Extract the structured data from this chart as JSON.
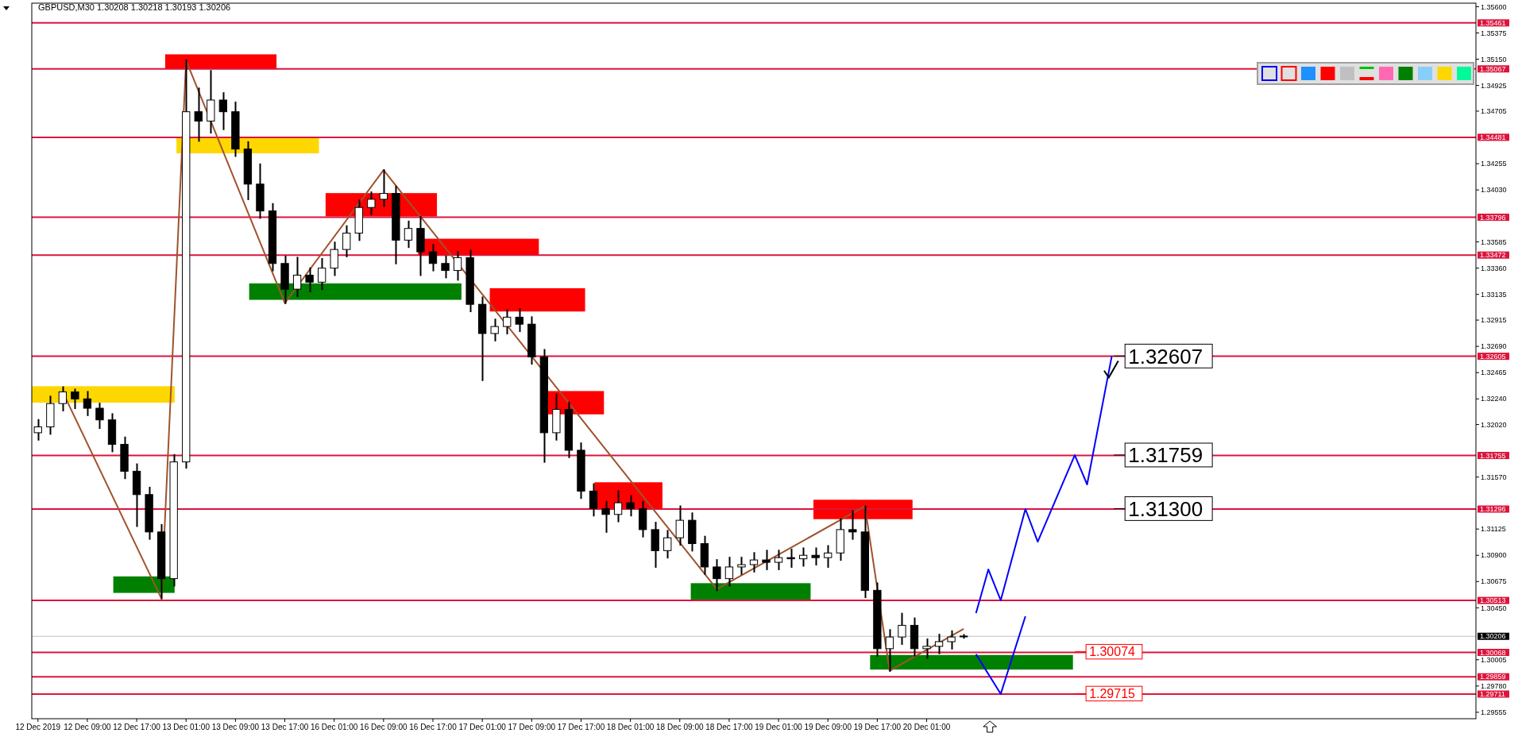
{
  "chart_data": {
    "type": "candlestick",
    "title": "GBPUSD,M30  1.30208 1.30218 1.30193 1.30206",
    "categories": [
      "12 Dec 2019",
      null,
      null,
      null,
      "12 Dec 09:00",
      null,
      null,
      null,
      "12 Dec 17:00",
      null,
      null,
      null,
      "13 Dec 01:00",
      null,
      null,
      null,
      "13 Dec 09:00",
      null,
      null,
      null,
      "13 Dec 17:00",
      null,
      null,
      null,
      "16 Dec 01:00",
      null,
      null,
      null,
      "16 Dec 09:00",
      null,
      null,
      null,
      "16 Dec 17:00",
      null,
      null,
      null,
      "17 Dec 01:00",
      null,
      null,
      null,
      "17 Dec 09:00",
      null,
      null,
      null,
      "17 Dec 17:00",
      null,
      null,
      null,
      "18 Dec 01:00",
      null,
      null,
      null,
      "18 Dec 09:00",
      null,
      null,
      null,
      "18 Dec 17:00",
      null,
      null,
      null,
      "19 Dec 01:00",
      null,
      null,
      null,
      "19 Dec 09:00",
      null,
      null,
      null,
      "19 Dec 17:00",
      null,
      null,
      null,
      "20 Dec 01:00",
      null,
      null,
      null,
      null,
      null,
      null,
      null,
      null,
      null,
      null,
      null,
      null,
      null,
      null,
      null,
      null,
      null,
      null,
      null,
      null,
      null,
      null,
      null,
      null,
      null,
      null,
      null,
      null,
      null,
      null,
      null,
      null,
      null,
      null,
      null,
      null,
      null,
      null,
      null,
      null,
      null,
      null,
      null,
      null
    ],
    "ohlc": [
      [
        1.3195,
        1.3206,
        1.3189,
        1.32
      ],
      [
        1.32,
        1.3226,
        1.3194,
        1.322
      ],
      [
        1.322,
        1.3234,
        1.3214,
        1.323
      ],
      [
        1.323,
        1.3232,
        1.3216,
        1.3224
      ],
      [
        1.3224,
        1.323,
        1.321,
        1.3216
      ],
      [
        1.3216,
        1.322,
        1.3199,
        1.3206
      ],
      [
        1.3206,
        1.3211,
        1.3179,
        1.3185
      ],
      [
        1.3185,
        1.3191,
        1.3156,
        1.3162
      ],
      [
        1.3162,
        1.3168,
        1.3115,
        1.3142
      ],
      [
        1.3142,
        1.3148,
        1.3104,
        1.311
      ],
      [
        1.311,
        1.3116,
        1.3053,
        1.307
      ],
      [
        1.307,
        1.3176,
        1.3064,
        1.317
      ],
      [
        1.317,
        1.3514,
        1.3165,
        1.347
      ],
      [
        1.347,
        1.349,
        1.3445,
        1.3462
      ],
      [
        1.3462,
        1.3505,
        1.3452,
        1.348
      ],
      [
        1.348,
        1.3486,
        1.3455,
        1.347
      ],
      [
        1.347,
        1.3478,
        1.3432,
        1.3438
      ],
      [
        1.3438,
        1.3444,
        1.3395,
        1.3408
      ],
      [
        1.3408,
        1.3425,
        1.3379,
        1.3385
      ],
      [
        1.3385,
        1.3391,
        1.3334,
        1.334
      ],
      [
        1.334,
        1.3346,
        1.3306,
        1.3318
      ],
      [
        1.3318,
        1.3345,
        1.3312,
        1.333
      ],
      [
        1.333,
        1.3336,
        1.3316,
        1.3324
      ],
      [
        1.3324,
        1.3344,
        1.3318,
        1.3336
      ],
      [
        1.3336,
        1.3358,
        1.333,
        1.3352
      ],
      [
        1.3352,
        1.3372,
        1.3346,
        1.3366
      ],
      [
        1.3366,
        1.3394,
        1.336,
        1.3388
      ],
      [
        1.3388,
        1.3401,
        1.3382,
        1.3395
      ],
      [
        1.3395,
        1.342,
        1.3389,
        1.34
      ],
      [
        1.34,
        1.3406,
        1.334,
        1.336
      ],
      [
        1.336,
        1.3376,
        1.3354,
        1.337
      ],
      [
        1.337,
        1.338,
        1.333,
        1.335
      ],
      [
        1.335,
        1.3356,
        1.3334,
        1.334
      ],
      [
        1.334,
        1.3346,
        1.3328,
        1.3334
      ],
      [
        1.3334,
        1.335,
        1.3326,
        1.3345
      ],
      [
        1.3345,
        1.3351,
        1.3299,
        1.3305
      ],
      [
        1.3305,
        1.3311,
        1.324,
        1.328
      ],
      [
        1.328,
        1.3292,
        1.3274,
        1.3286
      ],
      [
        1.3286,
        1.33,
        1.328,
        1.3294
      ],
      [
        1.3294,
        1.3301,
        1.3282,
        1.3288
      ],
      [
        1.3288,
        1.3294,
        1.3254,
        1.326
      ],
      [
        1.326,
        1.3266,
        1.317,
        1.3195
      ],
      [
        1.3195,
        1.3228,
        1.3189,
        1.3215
      ],
      [
        1.3215,
        1.3221,
        1.3174,
        1.318
      ],
      [
        1.318,
        1.3186,
        1.3139,
        1.3145
      ],
      [
        1.3145,
        1.3151,
        1.3124,
        1.313
      ],
      [
        1.313,
        1.3136,
        1.311,
        1.3125
      ],
      [
        1.3125,
        1.3145,
        1.3119,
        1.3135
      ],
      [
        1.3135,
        1.3141,
        1.3124,
        1.313
      ],
      [
        1.313,
        1.3136,
        1.3106,
        1.3112
      ],
      [
        1.3112,
        1.3118,
        1.308,
        1.3094
      ],
      [
        1.3094,
        1.3111,
        1.3088,
        1.3105
      ],
      [
        1.3105,
        1.3132,
        1.3099,
        1.312
      ],
      [
        1.312,
        1.3126,
        1.3094,
        1.31
      ],
      [
        1.31,
        1.3106,
        1.3074,
        1.308
      ],
      [
        1.308,
        1.3086,
        1.306,
        1.307
      ],
      [
        1.307,
        1.3088,
        1.3064,
        1.308
      ],
      [
        1.308,
        1.3088,
        1.3074,
        1.3082
      ],
      [
        1.3082,
        1.3092,
        1.3076,
        1.3086
      ],
      [
        1.3086,
        1.3094,
        1.3078,
        1.3084
      ],
      [
        1.3084,
        1.3094,
        1.3078,
        1.3088
      ],
      [
        1.3088,
        1.3095,
        1.308,
        1.3087
      ],
      [
        1.3087,
        1.3096,
        1.3081,
        1.309
      ],
      [
        1.309,
        1.3096,
        1.3082,
        1.3088
      ],
      [
        1.3088,
        1.3098,
        1.308,
        1.3092
      ],
      [
        1.3092,
        1.3121,
        1.3086,
        1.3112
      ],
      [
        1.3112,
        1.3128,
        1.3104,
        1.311
      ],
      [
        1.311,
        1.3132,
        1.3054,
        1.306
      ],
      [
        1.306,
        1.3066,
        1.3004,
        1.301
      ],
      [
        1.301,
        1.3026,
        1.2991,
        1.302
      ],
      [
        1.302,
        1.304,
        1.3014,
        1.303
      ],
      [
        1.303,
        1.3036,
        1.3004,
        1.301
      ],
      [
        1.301,
        1.3018,
        1.3002,
        1.3012
      ],
      [
        1.3012,
        1.3022,
        1.3006,
        1.3016
      ],
      [
        1.3016,
        1.3025,
        1.301,
        1.302
      ],
      [
        1.30208,
        1.30218,
        1.30193,
        1.30206
      ],
      null,
      null,
      null,
      null,
      null,
      null,
      null,
      null,
      null,
      null,
      null,
      null,
      null,
      null,
      null,
      null,
      null,
      null,
      null,
      null,
      null,
      null,
      null,
      null,
      null,
      null,
      null,
      null,
      null,
      null,
      null,
      null,
      null,
      null,
      null,
      null,
      null,
      null,
      null,
      null,
      null
    ],
    "series": [
      {
        "type": "line",
        "color": "#a0522d",
        "values": [
          null,
          null,
          1.323,
          null,
          null,
          null,
          null,
          null,
          null,
          null,
          1.3053,
          null,
          1.3514,
          null,
          null,
          null,
          null,
          null,
          null,
          null,
          1.3306,
          null,
          null,
          null,
          null,
          null,
          null,
          null,
          1.342,
          null,
          null,
          null,
          null,
          null,
          null,
          null,
          null,
          null,
          null,
          null,
          null,
          null,
          null,
          null,
          null,
          null,
          null,
          null,
          null,
          null,
          null,
          null,
          null,
          null,
          null,
          1.3061,
          null,
          null,
          null,
          null,
          null,
          null,
          null,
          null,
          null,
          null,
          null,
          1.3132,
          null,
          1.2991,
          null,
          null,
          null,
          null,
          null,
          1.3027,
          null,
          null,
          null,
          null,
          null,
          null,
          null,
          null,
          null,
          null,
          null,
          null,
          null,
          null,
          null,
          null,
          null,
          null,
          null,
          null,
          null,
          null,
          null,
          null,
          null,
          null,
          null,
          null,
          null,
          null,
          null,
          null,
          null,
          null,
          null,
          null,
          null,
          null,
          null,
          null,
          null
        ]
      },
      {
        "type": "line",
        "color": "#0000ff",
        "values": [
          null,
          null,
          null,
          null,
          null,
          null,
          null,
          null,
          null,
          null,
          null,
          null,
          null,
          null,
          null,
          null,
          null,
          null,
          null,
          null,
          null,
          null,
          null,
          null,
          null,
          null,
          null,
          null,
          null,
          null,
          null,
          null,
          null,
          null,
          null,
          null,
          null,
          null,
          null,
          null,
          null,
          null,
          null,
          null,
          null,
          null,
          null,
          null,
          null,
          null,
          null,
          null,
          null,
          null,
          null,
          null,
          null,
          null,
          null,
          null,
          null,
          null,
          null,
          null,
          null,
          null,
          null,
          null,
          null,
          null,
          null,
          null,
          null,
          null,
          null,
          null,
          1.30405,
          1.30779,
          1.30514,
          null,
          1.31296,
          1.31017,
          null,
          null,
          1.31758,
          1.31507,
          null,
          1.32607,
          null,
          null,
          null,
          null,
          null,
          null,
          null,
          null,
          null,
          null,
          null,
          null,
          null,
          null,
          null,
          null,
          null,
          null,
          null,
          null,
          null,
          null,
          null,
          null,
          null,
          null,
          null,
          null,
          null
        ]
      },
      {
        "type": "line",
        "color": "#0000ff",
        "values": [
          null,
          null,
          null,
          null,
          null,
          null,
          null,
          null,
          null,
          null,
          null,
          null,
          null,
          null,
          null,
          null,
          null,
          null,
          null,
          null,
          null,
          null,
          null,
          null,
          null,
          null,
          null,
          null,
          null,
          null,
          null,
          null,
          null,
          null,
          null,
          null,
          null,
          null,
          null,
          null,
          null,
          null,
          null,
          null,
          null,
          null,
          null,
          null,
          null,
          null,
          null,
          null,
          null,
          null,
          null,
          null,
          null,
          null,
          null,
          null,
          null,
          null,
          null,
          null,
          null,
          null,
          null,
          null,
          null,
          null,
          null,
          null,
          null,
          null,
          null,
          null,
          1.30052,
          null,
          1.29712,
          null,
          1.30378,
          null,
          null,
          null,
          null,
          null,
          null,
          null,
          null,
          null,
          null,
          null,
          null,
          null,
          null,
          null,
          null,
          null,
          null,
          null,
          null,
          null,
          null,
          null,
          null,
          null,
          null,
          null,
          null,
          null,
          null,
          null,
          null,
          null,
          null,
          null,
          null
        ]
      }
    ],
    "ylim": [
      1.295,
      1.3563
    ],
    "yticks": [
      {
        "value": 1.356,
        "label": "1.35600"
      },
      {
        "value": 1.35375,
        "label": "1.35375"
      },
      {
        "value": 1.3515,
        "label": "1.35150"
      },
      {
        "value": 1.34925,
        "label": "1.34925"
      },
      {
        "value": 1.34705,
        "label": "1.34705"
      },
      {
        "value": 1.34255,
        "label": "1.34255"
      },
      {
        "value": 1.3403,
        "label": "1.34030"
      },
      {
        "value": 1.33585,
        "label": "1.33585"
      },
      {
        "value": 1.3336,
        "label": "1.33360"
      },
      {
        "value": 1.33135,
        "label": "1.33135"
      },
      {
        "value": 1.32915,
        "label": "1.32915"
      },
      {
        "value": 1.3269,
        "label": "1.32690"
      },
      {
        "value": 1.32465,
        "label": "1.32465"
      },
      {
        "value": 1.3224,
        "label": "1.32240"
      },
      {
        "value": 1.3202,
        "label": "1.32020"
      },
      {
        "value": 1.3157,
        "label": "1.31570"
      },
      {
        "value": 1.31125,
        "label": "1.31125"
      },
      {
        "value": 1.309,
        "label": "1.30900"
      },
      {
        "value": 1.30675,
        "label": "1.30675"
      },
      {
        "value": 1.3045,
        "label": "1.30450"
      },
      {
        "value": 1.30005,
        "label": "1.30005"
      },
      {
        "value": 1.2978,
        "label": "1.29780"
      },
      {
        "value": 1.29555,
        "label": "1.29555"
      }
    ],
    "ref_lines": [
      {
        "axis": "y",
        "value": 1.35461,
        "label": "1.35461",
        "color": "#dc143c"
      },
      {
        "axis": "y",
        "value": 1.35067,
        "label": "1.35067",
        "color": "#dc143c"
      },
      {
        "axis": "y",
        "value": 1.34481,
        "label": "1.34481",
        "color": "#dc143c"
      },
      {
        "axis": "y",
        "value": 1.33796,
        "label": "1.33796",
        "color": "#dc143c"
      },
      {
        "axis": "y",
        "value": 1.33472,
        "label": "1.33472",
        "color": "#dc143c"
      },
      {
        "axis": "y",
        "value": 1.32605,
        "label": "1.32605",
        "color": "#dc143c"
      },
      {
        "axis": "y",
        "value": 1.31755,
        "label": "1.31755",
        "color": "#dc143c"
      },
      {
        "axis": "y",
        "value": 1.31296,
        "label": "1.31296",
        "color": "#dc143c"
      },
      {
        "axis": "y",
        "value": 1.30513,
        "label": "1.30513",
        "color": "#dc143c"
      },
      {
        "axis": "y",
        "value": 1.30206,
        "label": "1.30206",
        "color": "#c0c0c0"
      },
      {
        "axis": "y",
        "value": 1.30068,
        "label": "1.30068",
        "color": "#dc143c"
      },
      {
        "axis": "y",
        "value": 1.29859,
        "label": "1.29859",
        "color": "#dc143c"
      },
      {
        "axis": "y",
        "value": 1.29711,
        "label": "1.29711",
        "color": "#dc143c"
      }
    ],
    "annotations": [
      {
        "text": "1.32607",
        "y": 1.32607
      },
      {
        "text": "1.31759",
        "y": 1.31759
      },
      {
        "text": "1.31300",
        "y": 1.313
      },
      {
        "text": "1.30074",
        "y": 1.30074
      },
      {
        "text": "1.29715",
        "y": 1.29715
      }
    ],
    "grid": false
  }
}
